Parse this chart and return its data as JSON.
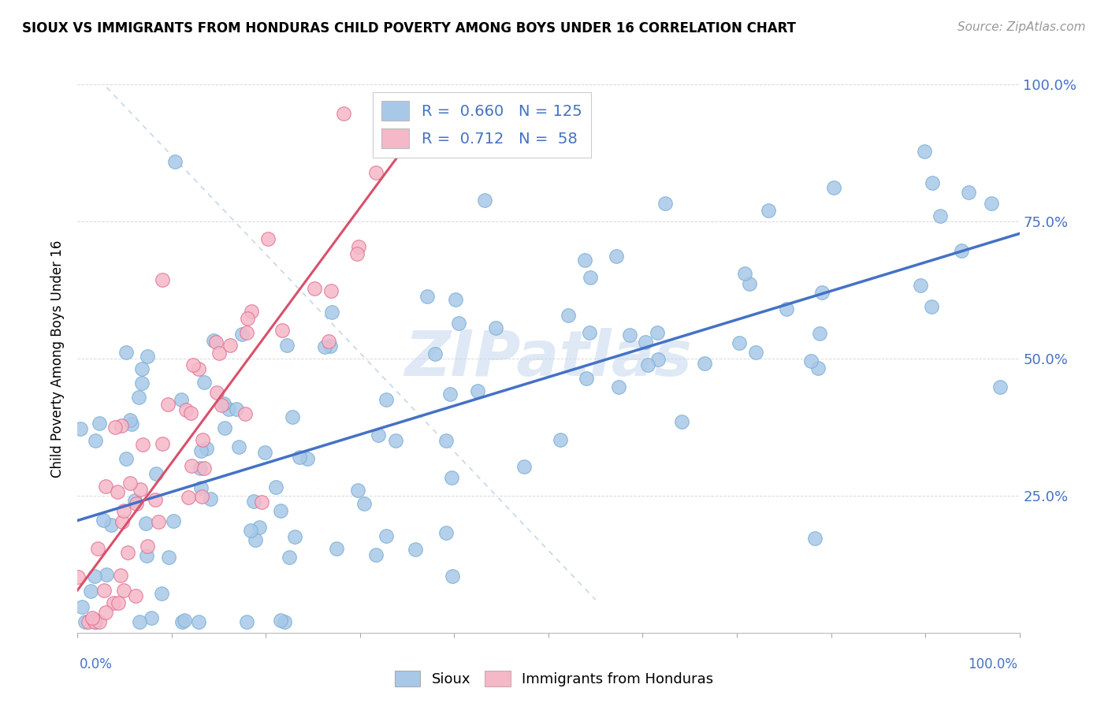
{
  "title": "SIOUX VS IMMIGRANTS FROM HONDURAS CHILD POVERTY AMONG BOYS UNDER 16 CORRELATION CHART",
  "source": "Source: ZipAtlas.com",
  "ylabel": "Child Poverty Among Boys Under 16",
  "sioux_color": "#a8c8e8",
  "sioux_edge": "#7bafd4",
  "honduras_color": "#f5b8c8",
  "honduras_edge": "#e07090",
  "sioux_R": 0.66,
  "sioux_N": 125,
  "honduras_R": 0.712,
  "honduras_N": 58,
  "sioux_line_color": "#4472c4",
  "honduras_line_color": "#d9506a",
  "watermark_color": "#c5d8ee",
  "background": "#ffffff",
  "legend_R_color": "#4472c4",
  "grid_color": "#d0d0d0"
}
